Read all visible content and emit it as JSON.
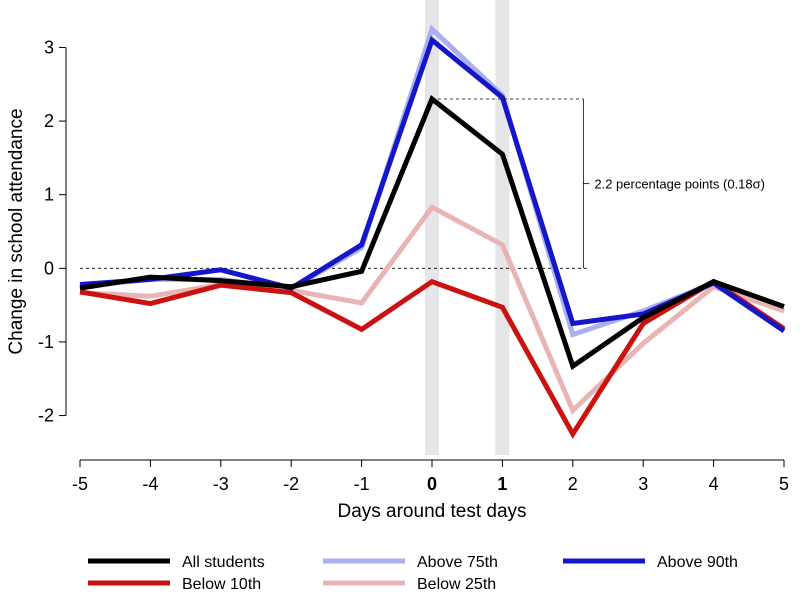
{
  "chart_data": {
    "type": "line",
    "xlabel": "Days around test days",
    "ylabel": "Change in school attendance",
    "x": [
      -5,
      -4,
      -3,
      -2,
      -1,
      0,
      1,
      2,
      3,
      4,
      5
    ],
    "x_tick_labels": [
      "-5",
      "-4",
      "-3",
      "-2",
      "-1",
      "0",
      "1",
      "2",
      "3",
      "4",
      "5"
    ],
    "bold_x_ticks": [
      "0",
      "1"
    ],
    "xlim": [
      -5,
      5
    ],
    "ylim": [
      -2.4,
      3.4
    ],
    "y_ticks": [
      -2,
      -1,
      0,
      1,
      2,
      3
    ],
    "y_tick_labels": [
      "-2",
      "-1",
      "0",
      "1",
      "2",
      "3"
    ],
    "highlight_days": [
      0,
      1
    ],
    "reference_line_y": 0,
    "bracket": {
      "top_y": 2.3,
      "bottom_y": 0,
      "label": "2.2 percentage points (0.18σ)"
    },
    "series": [
      {
        "name": "Above 75th",
        "color": "#aab0ee",
        "values": [
          -0.25,
          -0.15,
          -0.15,
          -0.28,
          0.28,
          3.25,
          2.35,
          -0.9,
          -0.58,
          -0.2,
          -0.82
        ]
      },
      {
        "name": "Below 25th",
        "color": "#e8b4b4",
        "values": [
          -0.33,
          -0.38,
          -0.22,
          -0.3,
          -0.47,
          0.83,
          0.32,
          -1.93,
          -1.02,
          -0.25,
          -0.58
        ]
      },
      {
        "name": "Below 10th",
        "color": "#cc1111",
        "values": [
          -0.32,
          -0.48,
          -0.23,
          -0.33,
          -0.83,
          -0.18,
          -0.53,
          -2.25,
          -0.75,
          -0.18,
          -0.82
        ]
      },
      {
        "name": "Above 90th",
        "color": "#1515cc",
        "values": [
          -0.22,
          -0.15,
          -0.02,
          -0.27,
          0.32,
          3.1,
          2.32,
          -0.75,
          -0.62,
          -0.2,
          -0.85
        ]
      },
      {
        "name": "All students",
        "color": "#000000",
        "values": [
          -0.27,
          -0.12,
          -0.17,
          -0.25,
          -0.04,
          2.3,
          1.55,
          -1.33,
          -0.67,
          -0.18,
          -0.52
        ]
      }
    ],
    "legend": [
      {
        "name": "All students",
        "color": "#000000"
      },
      {
        "name": "Above 75th",
        "color": "#aab0ee"
      },
      {
        "name": "Above 90th",
        "color": "#1515cc"
      },
      {
        "name": "Below 10th",
        "color": "#cc1111"
      },
      {
        "name": "Below 25th",
        "color": "#e8b4b4"
      }
    ],
    "grid": false,
    "legend_position": "bottom"
  }
}
